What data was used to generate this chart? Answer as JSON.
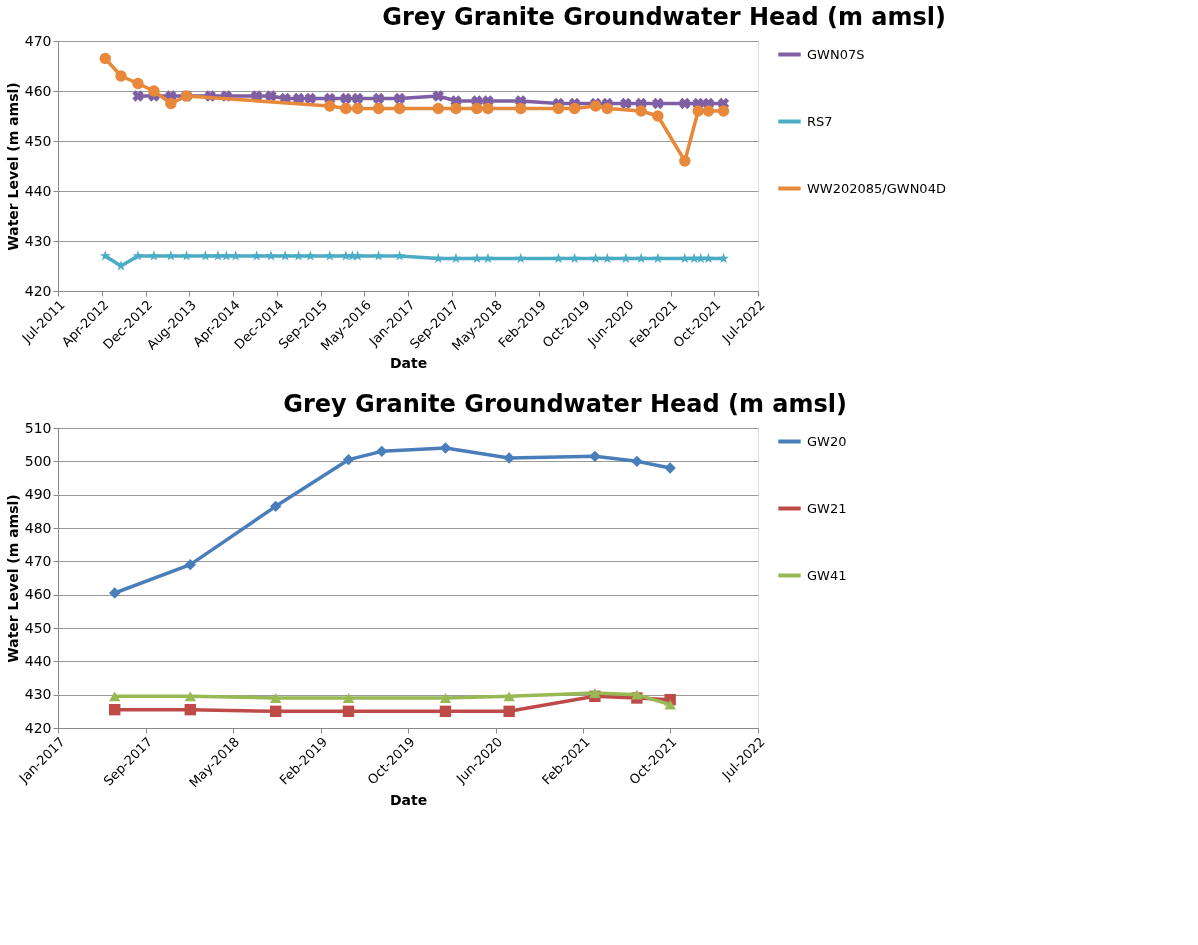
{
  "chart_data": [
    {
      "type": "line",
      "title": "Grey Granite Groundwater Head (m amsl)",
      "xlabel": "Date",
      "ylabel": "Water Level (m amsl)",
      "xlim": [
        "2011-07-28",
        "2022-07-10"
      ],
      "xticks": [
        {
          "value": "2011-07-28",
          "label": "Jul-2011"
        },
        {
          "value": "2012-04-03",
          "label": "Apr-2012"
        },
        {
          "value": "2012-12-09",
          "label": "Dec-2012"
        },
        {
          "value": "2013-08-16",
          "label": "Aug-2013"
        },
        {
          "value": "2014-04-23",
          "label": "Apr-2014"
        },
        {
          "value": "2014-12-29",
          "label": "Dec-2014"
        },
        {
          "value": "2015-09-05",
          "label": "Sep-2015"
        },
        {
          "value": "2016-05-12",
          "label": "May-2016"
        },
        {
          "value": "2017-01-17",
          "label": "Jan-2017"
        },
        {
          "value": "2017-09-24",
          "label": "Sep-2017"
        },
        {
          "value": "2018-05-31",
          "label": "May-2018"
        },
        {
          "value": "2019-02-06",
          "label": "Feb-2019"
        },
        {
          "value": "2019-10-14",
          "label": "Oct-2019"
        },
        {
          "value": "2020-06-20",
          "label": "Jun-2020"
        },
        {
          "value": "2021-02-25",
          "label": "Feb-2021"
        },
        {
          "value": "2021-10-31",
          "label": "Oct-2021"
        },
        {
          "value": "2022-07-10",
          "label": "Jul-2022"
        }
      ],
      "ylim": [
        420,
        470
      ],
      "yticks": [
        420,
        430,
        440,
        450,
        460,
        470
      ],
      "grid": "y",
      "legend": "right",
      "series": [
        {
          "name": "GWN07S",
          "color": "#7e5fa4",
          "marker": "cross",
          "x": [
            "2012-10-27",
            "2013-01-26",
            "2013-05-03",
            "2013-08-01",
            "2013-12-14",
            "2014-03-16",
            "2014-09-05",
            "2014-11-26",
            "2015-02-15",
            "2015-05-03",
            "2015-07-09",
            "2015-10-28",
            "2016-01-28",
            "2016-04-04",
            "2016-08-02",
            "2016-11-30",
            "2017-07-09",
            "2017-10-18",
            "2018-02-15",
            "2018-04-19",
            "2018-10-23",
            "2019-05-27",
            "2019-08-27",
            "2019-12-25",
            "2020-03-01",
            "2020-06-15",
            "2020-09-10",
            "2020-12-15",
            "2021-05-18",
            "2021-08-02",
            "2021-09-30",
            "2021-12-25"
          ],
          "values": [
            459,
            459,
            459,
            459,
            459,
            459,
            459,
            459,
            458.5,
            458.5,
            458.5,
            458.5,
            458.5,
            458.5,
            458.5,
            458.5,
            459,
            458,
            458,
            458,
            458,
            457.5,
            457.5,
            457.5,
            457.5,
            457.5,
            457.5,
            457.5,
            457.5,
            457.5,
            457.5,
            457.5
          ]
        },
        {
          "name": "RS7",
          "color": "#4bacc6",
          "marker": "star",
          "x": [
            "2012-04-23",
            "2012-07-22",
            "2012-10-27",
            "2013-01-26",
            "2013-05-03",
            "2013-08-01",
            "2013-11-16",
            "2014-01-27",
            "2014-03-16",
            "2014-05-08",
            "2014-09-05",
            "2014-11-26",
            "2015-02-15",
            "2015-05-03",
            "2015-07-09",
            "2015-10-28",
            "2016-01-28",
            "2016-03-05",
            "2016-04-04",
            "2016-08-02",
            "2016-11-30",
            "2017-07-09",
            "2017-10-18",
            "2018-02-15",
            "2018-04-19",
            "2018-10-23",
            "2019-05-27",
            "2019-08-27",
            "2019-12-25",
            "2020-03-01",
            "2020-06-15",
            "2020-09-10",
            "2020-12-15",
            "2021-05-18",
            "2021-07-10",
            "2021-08-17",
            "2021-09-30",
            "2021-12-25"
          ],
          "values": [
            427,
            425,
            427,
            427,
            427,
            427,
            427,
            427,
            427,
            427,
            427,
            427,
            427,
            427,
            427,
            427,
            427,
            427,
            427,
            427,
            427,
            426.5,
            426.5,
            426.5,
            426.5,
            426.5,
            426.5,
            426.5,
            426.5,
            426.5,
            426.5,
            426.5,
            426.5,
            426.5,
            426.5,
            426.5,
            426.5,
            426.5
          ]
        },
        {
          "name": "WW202085/GWN04D",
          "color": "#e8883a",
          "marker": "circle",
          "x": [
            "2012-04-23",
            "2012-07-22",
            "2012-10-27",
            "2013-01-26",
            "2013-05-03",
            "2013-08-01",
            "2015-10-28",
            "2016-01-28",
            "2016-04-04",
            "2016-08-02",
            "2016-11-30",
            "2017-07-09",
            "2017-10-18",
            "2018-02-15",
            "2018-04-19",
            "2018-10-23",
            "2019-05-27",
            "2019-08-27",
            "2019-12-25",
            "2020-03-01",
            "2020-09-10",
            "2020-12-15",
            "2021-05-18",
            "2021-08-02",
            "2021-09-30",
            "2021-12-25"
          ],
          "values": [
            466.5,
            463,
            461.5,
            460,
            457.5,
            459,
            457,
            456.5,
            456.5,
            456.5,
            456.5,
            456.5,
            456.5,
            456.5,
            456.5,
            456.5,
            456.5,
            456.5,
            457,
            456.5,
            456,
            455,
            446,
            456,
            456,
            456
          ]
        }
      ]
    },
    {
      "type": "line",
      "title": "Grey Granite Groundwater Head (m amsl)",
      "xlabel": "Date",
      "ylabel": "Water Level (m amsl)",
      "xlim": [
        "2017-01-17",
        "2022-07-10"
      ],
      "xticks": [
        {
          "value": "2017-01-17",
          "label": "Jan-2017"
        },
        {
          "value": "2017-09-24",
          "label": "Sep-2017"
        },
        {
          "value": "2018-05-31",
          "label": "May-2018"
        },
        {
          "value": "2019-02-06",
          "label": "Feb-2019"
        },
        {
          "value": "2019-10-14",
          "label": "Oct-2019"
        },
        {
          "value": "2020-06-20",
          "label": "Jun-2020"
        },
        {
          "value": "2021-02-25",
          "label": "Feb-2021"
        },
        {
          "value": "2021-10-31",
          "label": "Oct-2021"
        },
        {
          "value": "2022-07-10",
          "label": "Jul-2022"
        }
      ],
      "ylim": [
        420,
        510
      ],
      "yticks": [
        420,
        430,
        440,
        450,
        460,
        470,
        480,
        490,
        500,
        510
      ],
      "grid": "y",
      "legend": "right",
      "series": [
        {
          "name": "GW20",
          "color": "#4a7ebb",
          "marker": "diamond",
          "x": [
            "2017-06-28",
            "2018-01-30",
            "2018-10-01",
            "2019-04-27",
            "2019-07-31",
            "2020-01-29",
            "2020-07-29",
            "2021-03-31",
            "2021-07-29",
            "2021-11-01"
          ],
          "values": [
            460.5,
            469,
            486.5,
            500.5,
            503,
            504,
            501,
            501.5,
            500,
            498
          ]
        },
        {
          "name": "GW21",
          "color": "#be4b48",
          "marker": "square",
          "x": [
            "2017-06-28",
            "2018-01-30",
            "2018-10-01",
            "2019-04-27",
            "2020-01-29",
            "2020-07-29",
            "2021-03-31",
            "2021-07-29",
            "2021-11-01"
          ],
          "values": [
            425.5,
            425.5,
            425,
            425,
            425,
            425,
            429.5,
            429,
            428.5
          ]
        },
        {
          "name": "GW41",
          "color": "#98b954",
          "marker": "triangle",
          "x": [
            "2017-06-28",
            "2018-01-30",
            "2018-10-01",
            "2019-04-27",
            "2020-01-29",
            "2020-07-29",
            "2021-03-31",
            "2021-07-29",
            "2021-11-01"
          ],
          "values": [
            429.5,
            429.5,
            429,
            429,
            429,
            429.5,
            430.5,
            430,
            427
          ]
        }
      ]
    }
  ]
}
